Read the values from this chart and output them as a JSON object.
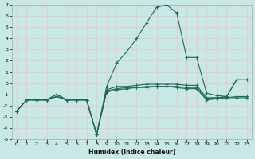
{
  "xlabel": "Humidex (Indice chaleur)",
  "bg_color": "#c8e8e5",
  "grid_color": "#e8c8c8",
  "line_color": "#1a6b5a",
  "xlim": [
    -0.5,
    23.5
  ],
  "ylim": [
    -5,
    7
  ],
  "xticks": [
    0,
    1,
    2,
    3,
    4,
    5,
    6,
    7,
    8,
    9,
    10,
    11,
    12,
    13,
    14,
    15,
    16,
    17,
    18,
    19,
    20,
    21,
    22,
    23
  ],
  "yticks": [
    -5,
    -4,
    -3,
    -2,
    -1,
    0,
    1,
    2,
    3,
    4,
    5,
    6,
    7
  ],
  "lines": [
    {
      "x": [
        0,
        1,
        2,
        3,
        4,
        5,
        6,
        7,
        8,
        9,
        10,
        11,
        12,
        13,
        14,
        15,
        16,
        17,
        18,
        19,
        20,
        21,
        22,
        23
      ],
      "y": [
        -2.5,
        -1.5,
        -1.5,
        -1.5,
        -1.2,
        -1.5,
        -1.5,
        -1.5,
        -4.6,
        -0.3,
        1.8,
        2.8,
        4.0,
        5.4,
        6.8,
        7.0,
        6.3,
        2.3,
        2.3,
        -0.9,
        -1.1,
        -1.2,
        0.3,
        0.3
      ]
    },
    {
      "x": [
        0,
        1,
        2,
        3,
        4,
        5,
        6,
        7,
        8,
        9,
        10,
        11,
        12,
        13,
        14,
        15,
        16,
        17,
        18,
        19,
        20,
        21,
        22,
        23
      ],
      "y": [
        -2.5,
        -1.5,
        -1.5,
        -1.5,
        -1.0,
        -1.5,
        -1.5,
        -1.5,
        -4.6,
        -0.6,
        -0.3,
        -0.3,
        -0.2,
        -0.1,
        -0.1,
        -0.1,
        -0.1,
        -0.2,
        -0.2,
        -1.3,
        -1.3,
        -1.2,
        0.3,
        0.3
      ]
    },
    {
      "x": [
        0,
        1,
        2,
        3,
        4,
        5,
        6,
        7,
        8,
        9,
        10,
        11,
        12,
        13,
        14,
        15,
        16,
        17,
        18,
        19,
        20,
        21,
        22,
        23
      ],
      "y": [
        -2.5,
        -1.5,
        -1.5,
        -1.5,
        -1.0,
        -1.5,
        -1.5,
        -1.5,
        -4.6,
        -0.7,
        -0.5,
        -0.4,
        -0.4,
        -0.3,
        -0.3,
        -0.3,
        -0.3,
        -0.4,
        -0.4,
        -1.4,
        -1.3,
        -1.3,
        -1.2,
        -1.2
      ]
    },
    {
      "x": [
        0,
        1,
        2,
        3,
        4,
        5,
        6,
        7,
        8,
        9,
        10,
        11,
        12,
        13,
        14,
        15,
        16,
        17,
        18,
        19,
        20,
        21,
        22,
        23
      ],
      "y": [
        -2.5,
        -1.5,
        -1.5,
        -1.5,
        -1.2,
        -1.5,
        -1.5,
        -1.5,
        -4.6,
        -0.8,
        -0.6,
        -0.5,
        -0.4,
        -0.4,
        -0.3,
        -0.3,
        -0.4,
        -0.5,
        -0.5,
        -1.5,
        -1.4,
        -1.3,
        -1.3,
        -1.3
      ]
    }
  ]
}
